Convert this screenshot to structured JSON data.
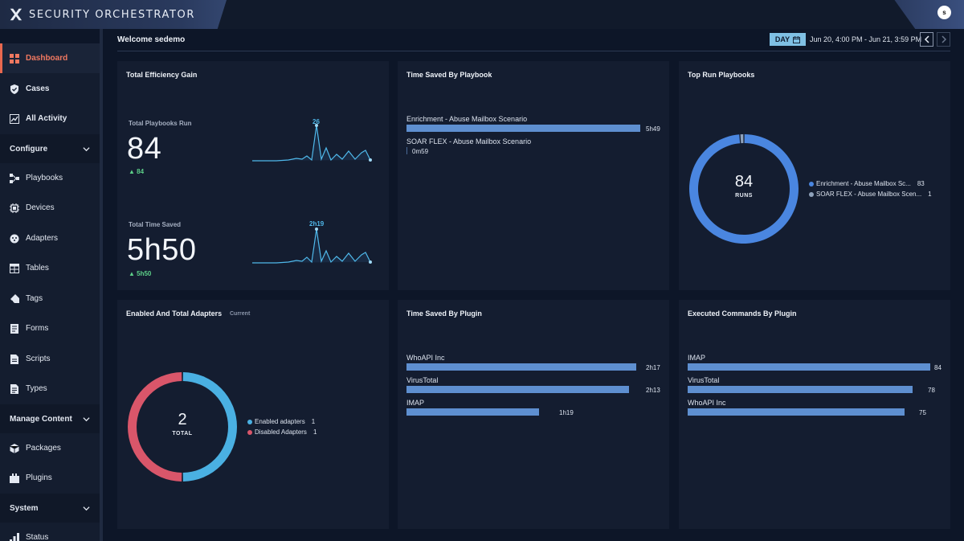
{
  "app": {
    "title": "SECURITY ORCHESTRATOR",
    "user_initial": "s"
  },
  "sidebar": {
    "items": [
      {
        "label": "Dashboard",
        "icon": "dashboard-icon",
        "active": true
      },
      {
        "label": "Cases",
        "icon": "shield-icon"
      },
      {
        "label": "All Activity",
        "icon": "activity-icon"
      }
    ],
    "configure": {
      "label": "Configure",
      "items": [
        {
          "label": "Playbooks",
          "icon": "playbooks-icon"
        },
        {
          "label": "Devices",
          "icon": "chip-icon"
        },
        {
          "label": "Adapters",
          "icon": "adapter-icon"
        },
        {
          "label": "Tables",
          "icon": "table-icon"
        },
        {
          "label": "Tags",
          "icon": "tag-icon"
        },
        {
          "label": "Forms",
          "icon": "form-icon"
        },
        {
          "label": "Scripts",
          "icon": "script-icon"
        },
        {
          "label": "Types",
          "icon": "types-icon"
        }
      ]
    },
    "manage": {
      "label": "Manage Content",
      "items": [
        {
          "label": "Packages",
          "icon": "package-icon"
        },
        {
          "label": "Plugins",
          "icon": "plugin-icon"
        }
      ]
    },
    "system": {
      "label": "System",
      "items": [
        {
          "label": "Status",
          "icon": "status-icon"
        }
      ]
    }
  },
  "header": {
    "welcome": "Welcome sedemo",
    "day_label": "DAY",
    "date_range": "Jun 20, 4:00 PM - Jun 21, 3:59 PM"
  },
  "efficiency": {
    "title": "Total Efficiency Gain",
    "playbooks_run": {
      "label": "Total Playbooks Run",
      "value": "84",
      "delta": "84",
      "peak_label": "26"
    },
    "time_saved": {
      "label": "Total Time Saved",
      "value": "5h50",
      "delta": "5h50",
      "peak_label": "2h19"
    }
  },
  "time_by_playbook": {
    "title": "Time Saved By Playbook",
    "max_minutes": 350,
    "rows": [
      {
        "label": "Enrichment - Abuse Mailbox Scenario",
        "value": "5h49",
        "minutes": 349
      },
      {
        "label": "SOAR FLEX - Abuse Mailbox Scenario",
        "value": "0m59",
        "minutes": 0.98
      }
    ]
  },
  "top_playbooks": {
    "title": "Top Run Playbooks",
    "total": "84",
    "caption": "RUNS",
    "segments": [
      {
        "label": "Enrichment - Abuse Mailbox Sc...",
        "value": 83,
        "color": "#4a86e0"
      },
      {
        "label": "SOAR FLEX - Abuse Mailbox Scen...",
        "value": 1,
        "color": "#8fa2bb"
      }
    ]
  },
  "adapters": {
    "title": "Enabled And Total Adapters",
    "subtitle": "Current",
    "total": "2",
    "caption": "TOTAL",
    "segments": [
      {
        "label": "Enabled adapters",
        "value": 1,
        "color": "#4ab0e2"
      },
      {
        "label": "Disabled Adapters",
        "value": 1,
        "color": "#d9566a"
      }
    ]
  },
  "time_by_plugin": {
    "title": "Time Saved By Plugin",
    "max_minutes": 140,
    "rows": [
      {
        "label": "WhoAPI Inc",
        "value": "2h17",
        "minutes": 137
      },
      {
        "label": "VirusTotal",
        "value": "2h13",
        "minutes": 133
      },
      {
        "label": "IMAP",
        "value": "1h19",
        "minutes": 79
      }
    ]
  },
  "commands_by_plugin": {
    "title": "Executed Commands By Plugin",
    "max": 84,
    "rows": [
      {
        "label": "IMAP",
        "value": "84",
        "count": 84
      },
      {
        "label": "VirusTotal",
        "value": "78",
        "count": 78
      },
      {
        "label": "WhoAPI Inc",
        "value": "75",
        "count": 75
      }
    ]
  }
}
